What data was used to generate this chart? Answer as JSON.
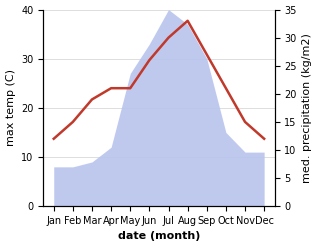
{
  "months": [
    "Jan",
    "Feb",
    "Mar",
    "Apr",
    "May",
    "Jun",
    "Jul",
    "Aug",
    "Sep",
    "Oct",
    "Nov",
    "Dec"
  ],
  "precipitation": [
    8,
    8,
    9,
    12,
    27,
    33,
    40,
    37,
    30,
    15,
    11,
    11
  ],
  "max_temp": [
    12,
    15,
    19,
    21,
    21,
    26,
    30,
    33,
    27,
    21,
    15,
    12
  ],
  "precip_color_fill": "#b8c4ed",
  "temp_color": "#c0392b",
  "xlabel": "date (month)",
  "ylabel_left": "max temp (C)",
  "ylabel_right": "med. precipitation (kg/m2)",
  "ylim_left": [
    0,
    40
  ],
  "ylim_right": [
    0,
    35
  ],
  "yticks_left": [
    0,
    10,
    20,
    30,
    40
  ],
  "yticks_right": [
    0,
    5,
    10,
    15,
    20,
    25,
    30,
    35
  ],
  "background_color": "#ffffff",
  "grid_color": "#d0d0d0",
  "label_fontsize": 8,
  "tick_fontsize": 7
}
